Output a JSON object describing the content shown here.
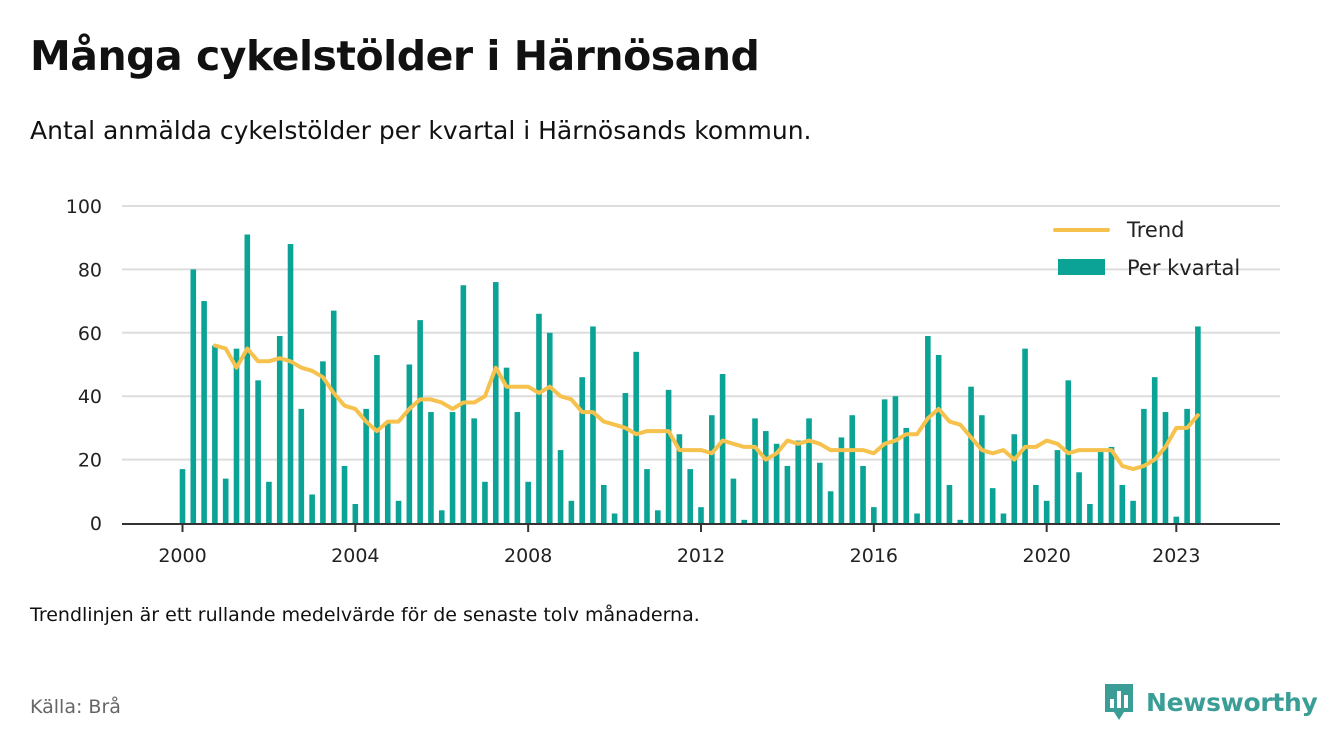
{
  "title": "Många cykelstölder i Härnösand",
  "subtitle": "Antal anmälda cykelstölder per kvartal i Härnösands kommun.",
  "note": "Trendlinjen är ett rullande medelvärde för de senaste tolv månaderna.",
  "source": "Källa: Brå",
  "brand": {
    "name": "Newsworthy",
    "icon": "bar-chart-speech-icon",
    "color": "#3a9e96"
  },
  "colors": {
    "bars": "#0aa396",
    "trend": "#f6c14c",
    "grid": "#dddddd",
    "axis": "#333333"
  },
  "chart_data": {
    "type": "bar",
    "x_start": 2000,
    "x_step": 0.25,
    "xlim": [
      1998.6,
      2025.4
    ],
    "ylim": [
      0,
      100
    ],
    "yticks": [
      0,
      20,
      40,
      60,
      80,
      100
    ],
    "xticks": [
      2000,
      2004,
      2008,
      2012,
      2016,
      2020,
      2023
    ],
    "grid": true,
    "legend_position": "top-right",
    "series": [
      {
        "name": "Per kvartal",
        "type": "bar",
        "values": [
          17,
          80,
          70,
          56,
          14,
          55,
          91,
          45,
          13,
          59,
          88,
          36,
          9,
          51,
          67,
          18,
          6,
          36,
          53,
          32,
          7,
          50,
          64,
          35,
          4,
          35,
          75,
          33,
          13,
          76,
          49,
          35,
          13,
          66,
          60,
          23,
          7,
          46,
          62,
          12,
          3,
          41,
          54,
          17,
          4,
          42,
          28,
          17,
          5,
          34,
          47,
          14,
          1,
          33,
          29,
          25,
          18,
          26,
          33,
          19,
          10,
          27,
          34,
          18,
          5,
          39,
          40,
          30,
          3,
          59,
          53,
          12,
          1,
          43,
          34,
          11,
          3,
          28,
          55,
          12,
          7,
          23,
          45,
          16,
          6,
          23,
          24,
          12,
          7,
          36,
          46,
          35,
          2,
          36,
          62
        ]
      },
      {
        "name": "Trend",
        "type": "line",
        "x": [
          2000.75,
          2001.0,
          2001.25,
          2001.5,
          2001.75,
          2002.0,
          2002.25,
          2002.5,
          2002.75,
          2003.0,
          2003.25,
          2003.5,
          2003.75,
          2004.0,
          2004.25,
          2004.5,
          2004.75,
          2005.0,
          2005.25,
          2005.5,
          2005.75,
          2006.0,
          2006.25,
          2006.5,
          2006.75,
          2007.0,
          2007.25,
          2007.5,
          2007.75,
          2008.0,
          2008.25,
          2008.5,
          2008.75,
          2009.0,
          2009.25,
          2009.5,
          2009.75,
          2010.0,
          2010.25,
          2010.5,
          2010.75,
          2011.0,
          2011.25,
          2011.5,
          2011.75,
          2012.0,
          2012.25,
          2012.5,
          2012.75,
          2013.0,
          2013.25,
          2013.5,
          2013.75,
          2014.0,
          2014.25,
          2014.5,
          2014.75,
          2015.0,
          2015.25,
          2015.5,
          2015.75,
          2016.0,
          2016.25,
          2016.5,
          2016.75,
          2017.0,
          2017.25,
          2017.5,
          2017.75,
          2018.0,
          2018.25,
          2018.5,
          2018.75,
          2019.0,
          2019.25,
          2019.5,
          2019.75,
          2020.0,
          2020.25,
          2020.5,
          2020.75,
          2021.0,
          2021.25,
          2021.5,
          2021.75,
          2022.0,
          2022.25,
          2022.5,
          2022.75,
          2023.0,
          2023.25,
          2023.5
        ],
        "values": [
          56,
          55,
          49,
          55,
          51,
          51,
          52,
          51,
          49,
          48,
          46,
          41,
          37,
          36,
          32,
          29,
          32,
          32,
          36,
          39,
          39,
          38,
          36,
          38,
          38,
          40,
          49,
          43,
          43,
          43,
          41,
          43,
          40,
          39,
          35,
          35,
          32,
          31,
          30,
          28,
          29,
          29,
          29,
          23,
          23,
          23,
          22,
          26,
          25,
          24,
          24,
          20,
          22,
          26,
          25,
          26,
          25,
          23,
          23,
          23,
          23,
          22,
          25,
          26,
          28,
          28,
          33,
          36,
          32,
          31,
          27,
          23,
          22,
          23,
          20,
          24,
          24,
          26,
          25,
          22,
          23,
          23,
          23,
          23,
          18,
          17,
          18,
          20,
          24,
          30,
          30,
          34
        ]
      }
    ]
  }
}
